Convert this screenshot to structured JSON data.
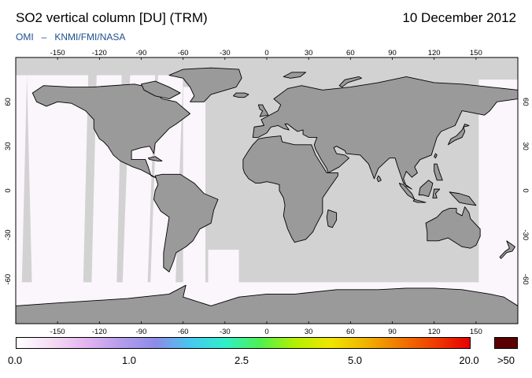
{
  "header": {
    "title": "SO2 vertical column [DU] (TRM)",
    "date": "10 December 2012",
    "credit_left": "OMI",
    "credit_dash": "–",
    "credit_right": "KNMI/FMI/NASA"
  },
  "map": {
    "projection": "equirectangular",
    "lon_range": [
      -180,
      180
    ],
    "lat_range": [
      -90,
      90
    ],
    "top_lon_ticks": [
      "-150",
      "-120",
      "-90",
      "-60",
      "-30",
      "0",
      "30",
      "60",
      "90",
      "120",
      "150"
    ],
    "bottom_lon_ticks": [
      "-150",
      "-120",
      "-90",
      "-60",
      "-30",
      "0",
      "30",
      "60",
      "90",
      "120",
      "150"
    ],
    "left_lat_ticks": [
      "60",
      "30",
      "0",
      "-30",
      "-60"
    ],
    "right_lat_ticks": [
      "60",
      "30",
      "0",
      "-30",
      "-60"
    ],
    "colors": {
      "ocean": "#d2d2d2",
      "land": "#9a9a9a",
      "coast": "#000000",
      "swath": "#fbf6fb",
      "no_data": "#d2d2d2"
    }
  },
  "colorbar": {
    "labels": [
      "0.0",
      "1.0",
      "2.5",
      "5.0",
      "20.0"
    ],
    "overflow_label": ">50",
    "overflow_color": "#5a0000",
    "stops": [
      "#ffffff",
      "#f4dcf4",
      "#e4b4f0",
      "#b49cec",
      "#8c8ce8",
      "#46c8f0",
      "#30f0c8",
      "#50f050",
      "#b4f000",
      "#f0e600",
      "#f0b400",
      "#f07800",
      "#f03c00",
      "#e60000"
    ]
  }
}
